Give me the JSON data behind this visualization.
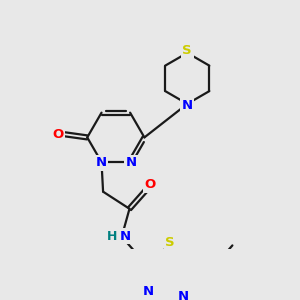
{
  "background_color": "#e8e8e8",
  "bond_color": "#1a1a1a",
  "atom_colors": {
    "N": "#0000ff",
    "O": "#ff0000",
    "S": "#cccc00",
    "H": "#008080",
    "C": "#1a1a1a"
  },
  "figsize": [
    3.0,
    3.0
  ],
  "dpi": 100,
  "lw": 1.6,
  "fontsize": 9.5
}
